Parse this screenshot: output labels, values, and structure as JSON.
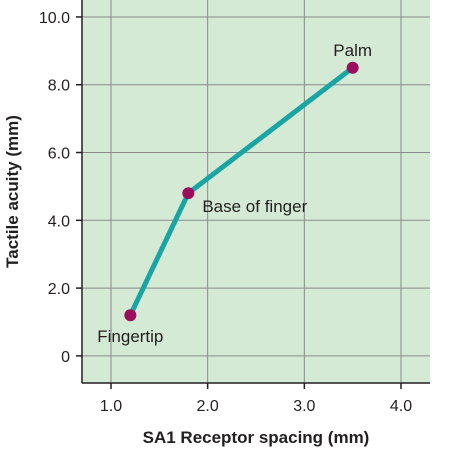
{
  "colors": {
    "plot_background": "#d4ead4",
    "grid": "#8a8a8a",
    "line": "#1aa5a5",
    "marker": "#9b0e5e",
    "axis": "#231f20"
  },
  "chart_data": {
    "type": "line",
    "xlabel": "SA1 Receptor spacing (mm)",
    "ylabel": "Tactile acuity (mm)",
    "xlim": [
      0.7,
      4.3
    ],
    "ylim": [
      -0.8,
      10.5
    ],
    "xticks": [
      1.0,
      2.0,
      3.0,
      4.0
    ],
    "xtick_labels": [
      "1.0",
      "2.0",
      "3.0",
      "4.0"
    ],
    "yticks": [
      0,
      2.0,
      4.0,
      6.0,
      8.0,
      10.0
    ],
    "ytick_labels": [
      "0",
      "2.0",
      "4.0",
      "6.0",
      "8.0",
      "10.0"
    ],
    "grid": true,
    "series": [
      {
        "x": [
          1.2,
          1.8,
          3.5
        ],
        "y": [
          1.2,
          4.8,
          8.5
        ],
        "point_labels": [
          "Fingertip",
          "Base of finger",
          "Palm"
        ]
      }
    ]
  }
}
